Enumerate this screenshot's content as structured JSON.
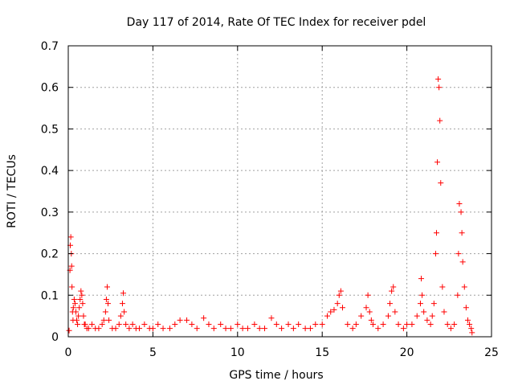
{
  "chart_data": {
    "type": "scatter",
    "title": "Day 117 of 2014, Rate Of TEC Index for receiver pdel",
    "xlabel": "GPS time / hours",
    "ylabel": "ROTI / TECUs",
    "xlim": [
      0,
      25
    ],
    "ylim": [
      0,
      0.7
    ],
    "xticks": [
      "0",
      "5",
      "10",
      "15",
      "20",
      "25"
    ],
    "yticks": [
      "0",
      "0.1",
      "0.2",
      "0.3",
      "0.4",
      "0.5",
      "0.6",
      "0.7"
    ],
    "grid": true,
    "marker": "+",
    "color": "#ff0000",
    "series": [
      {
        "x": [
          0.05,
          0.1,
          0.12,
          0.15,
          0.18,
          0.2,
          0.22,
          0.25,
          0.28,
          0.3,
          0.35,
          0.4,
          0.45,
          0.5,
          0.55,
          0.6,
          0.65,
          0.7,
          0.75,
          0.8,
          0.85,
          0.9,
          0.95,
          1.0,
          1.1,
          1.2,
          1.4,
          1.6,
          1.8,
          2.0,
          2.1,
          2.2,
          2.25,
          2.3,
          2.35,
          2.4,
          2.6,
          2.8,
          3.0,
          3.1,
          3.2,
          3.25,
          3.3,
          3.4,
          3.6,
          3.8,
          4.0,
          4.2,
          4.5,
          4.8,
          5.0,
          5.3,
          5.6,
          6.0,
          6.3,
          6.6,
          7.0,
          7.3,
          7.6,
          8.0,
          8.3,
          8.6,
          9.0,
          9.3,
          9.6,
          10.0,
          10.3,
          10.6,
          11.0,
          11.3,
          11.6,
          12.0,
          12.3,
          12.6,
          13.0,
          13.3,
          13.6,
          14.0,
          14.3,
          14.6,
          15.0,
          15.3,
          15.5,
          15.7,
          15.9,
          16.0,
          16.1,
          16.2,
          16.5,
          16.8,
          17.0,
          17.3,
          17.6,
          17.7,
          17.8,
          17.9,
          18.0,
          18.3,
          18.6,
          18.9,
          19.0,
          19.1,
          19.2,
          19.3,
          19.5,
          19.8,
          20.0,
          20.3,
          20.6,
          20.8,
          20.85,
          20.9,
          21.0,
          21.2,
          21.4,
          21.5,
          21.6,
          21.7,
          21.75,
          21.8,
          21.85,
          21.9,
          21.95,
          22.0,
          22.1,
          22.2,
          22.4,
          22.6,
          22.8,
          23.0,
          23.05,
          23.1,
          23.2,
          23.25,
          23.3,
          23.4,
          23.5,
          23.6,
          23.7,
          23.8,
          23.85
        ],
        "y": [
          0.015,
          0.16,
          0.22,
          0.24,
          0.2,
          0.17,
          0.12,
          0.06,
          0.04,
          0.07,
          0.09,
          0.08,
          0.06,
          0.04,
          0.03,
          0.05,
          0.07,
          0.09,
          0.11,
          0.1,
          0.08,
          0.05,
          0.03,
          0.03,
          0.02,
          0.02,
          0.03,
          0.02,
          0.02,
          0.03,
          0.04,
          0.06,
          0.09,
          0.12,
          0.08,
          0.04,
          0.02,
          0.02,
          0.03,
          0.05,
          0.08,
          0.105,
          0.06,
          0.03,
          0.02,
          0.03,
          0.02,
          0.02,
          0.03,
          0.02,
          0.02,
          0.03,
          0.02,
          0.02,
          0.03,
          0.04,
          0.04,
          0.03,
          0.02,
          0.045,
          0.03,
          0.02,
          0.03,
          0.02,
          0.02,
          0.03,
          0.02,
          0.02,
          0.03,
          0.02,
          0.02,
          0.045,
          0.03,
          0.02,
          0.03,
          0.02,
          0.03,
          0.02,
          0.02,
          0.03,
          0.03,
          0.05,
          0.06,
          0.065,
          0.08,
          0.1,
          0.11,
          0.07,
          0.03,
          0.02,
          0.03,
          0.05,
          0.07,
          0.1,
          0.06,
          0.04,
          0.03,
          0.02,
          0.03,
          0.05,
          0.08,
          0.11,
          0.12,
          0.06,
          0.03,
          0.02,
          0.03,
          0.03,
          0.05,
          0.08,
          0.14,
          0.1,
          0.06,
          0.04,
          0.03,
          0.05,
          0.08,
          0.2,
          0.25,
          0.42,
          0.62,
          0.6,
          0.52,
          0.37,
          0.12,
          0.06,
          0.03,
          0.02,
          0.03,
          0.1,
          0.2,
          0.32,
          0.3,
          0.25,
          0.18,
          0.12,
          0.07,
          0.04,
          0.03,
          0.02,
          0.01
        ]
      }
    ]
  }
}
